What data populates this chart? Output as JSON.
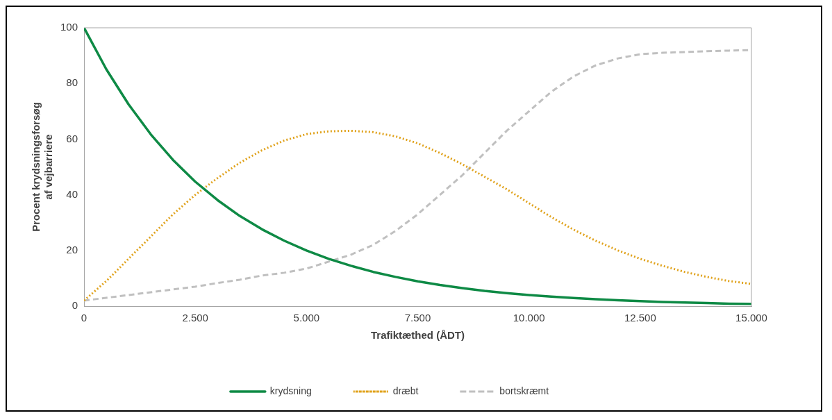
{
  "chart_data": {
    "type": "line",
    "xlabel": "Trafiktæthed (ÅDT)",
    "ylabel": "Procent krydsningsforsøg af vejbarriere",
    "x": [
      0,
      500,
      1000,
      1500,
      2000,
      2500,
      3000,
      3500,
      4000,
      4500,
      5000,
      5500,
      6000,
      6500,
      7000,
      7500,
      8000,
      8500,
      9000,
      9500,
      10000,
      10500,
      11000,
      11500,
      12000,
      12500,
      13000,
      13500,
      14000,
      14500,
      15000
    ],
    "series": [
      {
        "name": "krydsning",
        "color": "#0e8a45",
        "line_style": "solid",
        "values": [
          100,
          85.1,
          72.5,
          61.7,
          52.5,
          44.7,
          38.1,
          32.4,
          27.6,
          23.5,
          20,
          17,
          14.5,
          12.3,
          10.5,
          8.9,
          7.6,
          6.5,
          5.5,
          4.7,
          4,
          3.4,
          2.9,
          2.5,
          2.1,
          1.8,
          1.5,
          1.3,
          1.1,
          0.9,
          0.8
        ]
      },
      {
        "name": "dræbt",
        "color": "#e0a21b",
        "line_style": "dotted",
        "values": [
          2,
          9,
          17,
          25,
          33,
          40,
          46,
          51.5,
          56,
          59.5,
          61.8,
          62.8,
          63,
          62.5,
          61,
          58.5,
          55,
          51,
          46.5,
          42,
          37,
          32,
          27.5,
          23.5,
          20,
          17,
          14.5,
          12.3,
          10.5,
          9,
          8
        ]
      },
      {
        "name": "bortskræmt",
        "color": "#c0c0c0",
        "line_style": "dashed",
        "values": [
          2,
          3,
          4,
          5,
          6,
          7,
          8.3,
          9.5,
          11,
          12,
          13.5,
          16,
          18.5,
          22,
          27,
          33,
          40,
          47,
          55,
          63,
          70,
          77,
          82.5,
          86.5,
          89,
          90.5,
          91,
          91.3,
          91.6,
          91.8,
          92
        ]
      }
    ],
    "xlim": [
      0,
      15000
    ],
    "xticks": [
      0,
      {
        "value": 2500,
        "label": "2.500"
      },
      {
        "value": 5000,
        "label": "5.000"
      },
      {
        "value": 7500,
        "label": "7.500"
      },
      {
        "value": 10000,
        "label": "10.000"
      },
      {
        "value": 12500,
        "label": "12.500"
      },
      {
        "value": 15000,
        "label": "15.000"
      }
    ],
    "ylim": [
      0,
      100
    ],
    "yticks": [
      0,
      20,
      40,
      60,
      80,
      100
    ],
    "grid": false,
    "legend": "bottom",
    "marker": "none"
  }
}
